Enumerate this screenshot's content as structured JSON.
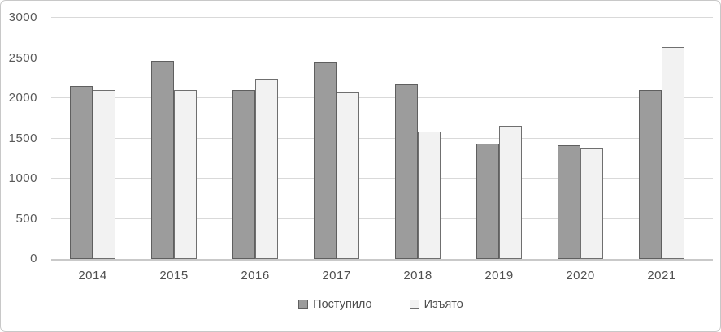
{
  "chart_data": {
    "type": "bar",
    "title": "",
    "xlabel": "",
    "ylabel": "",
    "categories": [
      "2014",
      "2015",
      "2016",
      "2017",
      "2018",
      "2019",
      "2020",
      "2021"
    ],
    "series": [
      {
        "key": "postupilo",
        "name": "Поступило",
        "values": [
          2150,
          2460,
          2100,
          2450,
          2170,
          1430,
          1410,
          2100
        ],
        "fill": "#9c9c9c",
        "border": "#5f5f5f"
      },
      {
        "key": "izyato",
        "name": "Изъято",
        "values": [
          2100,
          2100,
          2240,
          2080,
          1590,
          1660,
          1380,
          2640
        ],
        "fill": "#f2f2f2",
        "border": "#6f6f6f"
      }
    ],
    "ylim": [
      0,
      3000
    ],
    "ytick_values": [
      0,
      500,
      1000,
      1500,
      2000,
      2500,
      3000
    ],
    "ytick_labels": [
      "0",
      "500",
      "1000",
      "1500",
      "2000",
      "2500",
      "3000"
    ],
    "grid": "horizontal, every 500",
    "legend_position": "bottom",
    "colors": {
      "gridline": "#d9d9d9",
      "axis_line": "#c9c9c9",
      "tick_text": "#595959",
      "canvas_border": "#c8c8c8",
      "background": "#ffffff"
    }
  }
}
